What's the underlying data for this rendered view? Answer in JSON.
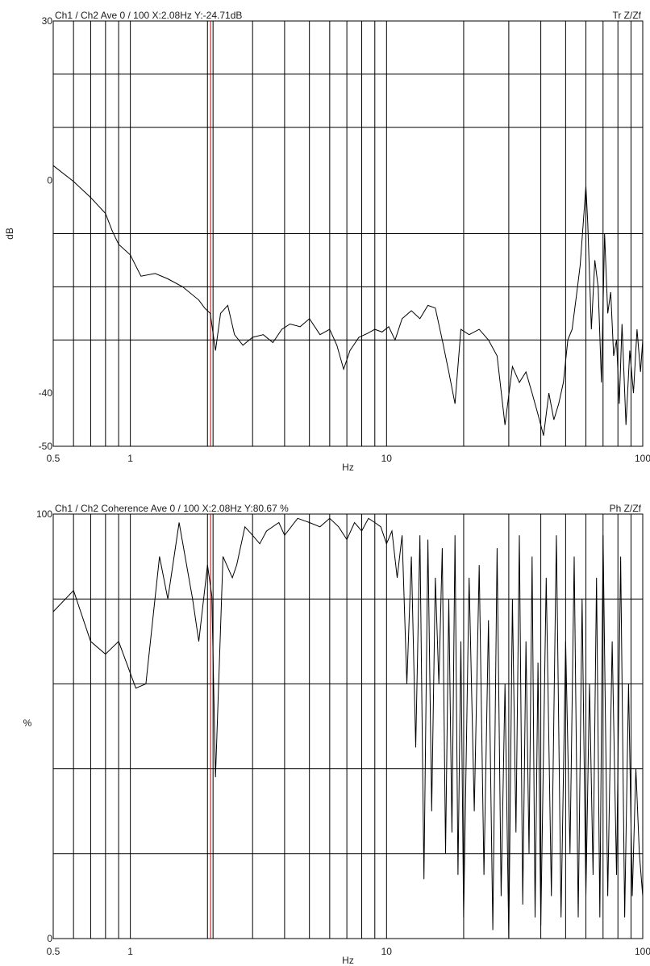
{
  "chart_data": [
    {
      "type": "line",
      "header_left": "Ch1 / Ch2  Ave 0 / 100  X:2.08Hz  Y:-24.71dB",
      "header_right": "Tr Z/Zf",
      "xlabel": "Hz",
      "ylabel": "dB",
      "x_scale": "log",
      "xlim": [
        0.5,
        100
      ],
      "ylim": [
        -50,
        30
      ],
      "x_major_ticks": [
        {
          "value": 0.5,
          "label": "0.5"
        },
        {
          "value": 1,
          "label": "1"
        },
        {
          "value": 10,
          "label": "10"
        },
        {
          "value": 100,
          "label": "100"
        }
      ],
      "y_ticks": [
        {
          "value": 30,
          "label": "30"
        },
        {
          "value": 0,
          "label": "0"
        },
        {
          "value": -40,
          "label": "-40"
        },
        {
          "value": -50,
          "label": "-50"
        }
      ],
      "y_grid": [
        20,
        10,
        -10,
        -20,
        -30
      ],
      "x_grid": [
        0.6,
        0.7,
        0.8,
        0.9,
        1,
        2,
        3,
        4,
        5,
        6,
        7,
        8,
        9,
        10,
        20,
        30,
        40,
        50,
        60,
        70,
        80,
        90,
        100
      ],
      "cursor_x": 2.08,
      "cursor_color": "#c00000",
      "grid": true,
      "series": [
        {
          "x": [
            0.5,
            0.6,
            0.7,
            0.8,
            0.85,
            0.9,
            1.0,
            1.1,
            1.25,
            1.4,
            1.6,
            1.85,
            1.95,
            2.05,
            2.15,
            2.25,
            2.4,
            2.55,
            2.75,
            3.0,
            3.3,
            3.6,
            3.9,
            4.2,
            4.6,
            5.0,
            5.5,
            6.0,
            6.4,
            6.8,
            7.2,
            7.8,
            8.4,
            9.0,
            9.6,
            10.2,
            10.8,
            11.5,
            12.5,
            13.5,
            14.5,
            15.5,
            16.5,
            17.5,
            18.5,
            19.5,
            21,
            23,
            25,
            27,
            29,
            31,
            33,
            35,
            37,
            39,
            41,
            43,
            45,
            47,
            49,
            51,
            53,
            55,
            57,
            59,
            60,
            61,
            63,
            65,
            67,
            69,
            71,
            73,
            75,
            77,
            79,
            81,
            83,
            86,
            89,
            92,
            95,
            98,
            100
          ],
          "y": [
            2.8,
            -0.2,
            -3.2,
            -6.2,
            -9.5,
            -12,
            -14,
            -18,
            -17.5,
            -18.5,
            -20,
            -22.5,
            -24,
            -25,
            -32,
            -25,
            -23.5,
            -29,
            -31,
            -29.5,
            -29,
            -30.5,
            -28,
            -27,
            -27.5,
            -26,
            -29,
            -28,
            -31,
            -35.5,
            -32,
            -29.5,
            -28.8,
            -28,
            -28.5,
            -27.5,
            -30,
            -26,
            -24.5,
            -26,
            -23.5,
            -24,
            -30,
            -36,
            -42,
            -28,
            -29,
            -28,
            -30,
            -33,
            -46,
            -35,
            -38,
            -36,
            -40,
            -44,
            -48,
            -40,
            -45,
            -42,
            -38,
            -30,
            -28,
            -22,
            -16,
            -6,
            -1,
            -8,
            -28,
            -15,
            -20,
            -38,
            -10,
            -25,
            -21,
            -33,
            -30,
            -42,
            -27,
            -46,
            -32,
            -40,
            -28,
            -36,
            -30
          ]
        }
      ]
    },
    {
      "type": "line",
      "header_left": "Ch1 / Ch2  Coherence Ave 0 / 100  X:2.08Hz  Y:80.67 %",
      "header_right": "Ph Z/Zf",
      "xlabel": "Hz",
      "ylabel": "%",
      "x_scale": "log",
      "xlim": [
        0.5,
        100
      ],
      "ylim": [
        0,
        100
      ],
      "x_major_ticks": [
        {
          "value": 0.5,
          "label": "0.5"
        },
        {
          "value": 1,
          "label": "1"
        },
        {
          "value": 10,
          "label": "10"
        },
        {
          "value": 100,
          "label": "100"
        }
      ],
      "y_ticks": [
        {
          "value": 100,
          "label": "100"
        },
        {
          "value": 0,
          "label": "0"
        }
      ],
      "y_grid": [
        80,
        60,
        40,
        20
      ],
      "x_grid": [
        0.6,
        0.7,
        0.8,
        0.9,
        1,
        2,
        3,
        4,
        5,
        6,
        7,
        8,
        9,
        10,
        20,
        30,
        40,
        50,
        60,
        70,
        80,
        90,
        100
      ],
      "cursor_x": 2.08,
      "cursor_color": "#c00000",
      "grid": true,
      "series": [
        {
          "x": [
            0.5,
            0.6,
            0.7,
            0.8,
            0.9,
            1.05,
            1.15,
            1.3,
            1.4,
            1.55,
            1.75,
            1.85,
            2.0,
            2.08,
            2.15,
            2.3,
            2.5,
            2.6,
            2.8,
            3.0,
            3.2,
            3.4,
            3.8,
            4.0,
            4.5,
            5.0,
            5.5,
            6.0,
            6.5,
            7.0,
            7.5,
            8.0,
            8.5,
            9.0,
            9.5,
            10.0,
            10.5,
            11,
            11.5,
            12,
            12.5,
            13,
            13.5,
            14,
            14.5,
            15,
            15.5,
            16,
            16.5,
            17,
            17.5,
            18,
            18.5,
            19,
            19.5,
            20,
            21,
            22,
            23,
            24,
            25,
            26,
            27,
            28,
            29,
            30,
            31,
            32,
            33,
            34,
            35,
            36,
            37,
            38,
            39,
            40,
            42,
            44,
            46,
            48,
            50,
            52,
            54,
            56,
            58,
            60,
            62,
            64,
            66,
            68,
            70,
            73,
            76,
            79,
            82,
            85,
            88,
            91,
            94,
            97,
            100
          ],
          "y": [
            77,
            82,
            70,
            67,
            70,
            59,
            60,
            90,
            80,
            98,
            80,
            70,
            88,
            80.67,
            38,
            90,
            85,
            88,
            97,
            95,
            93,
            96,
            98,
            95,
            99,
            98,
            97,
            99,
            97,
            94,
            98,
            96,
            99,
            98,
            97,
            93,
            96,
            85,
            95,
            60,
            90,
            45,
            95,
            14,
            94,
            30,
            85,
            60,
            92,
            20,
            80,
            25,
            95,
            15,
            70,
            5,
            85,
            30,
            88,
            15,
            75,
            2,
            92,
            10,
            60,
            0,
            80,
            25,
            95,
            8,
            70,
            20,
            90,
            5,
            65,
            3,
            85,
            10,
            95,
            5,
            70,
            20,
            90,
            5,
            80,
            10,
            60,
            15,
            85,
            5,
            95,
            10,
            70,
            15,
            90,
            5,
            60,
            10,
            40,
            20,
            10
          ]
        }
      ]
    }
  ]
}
